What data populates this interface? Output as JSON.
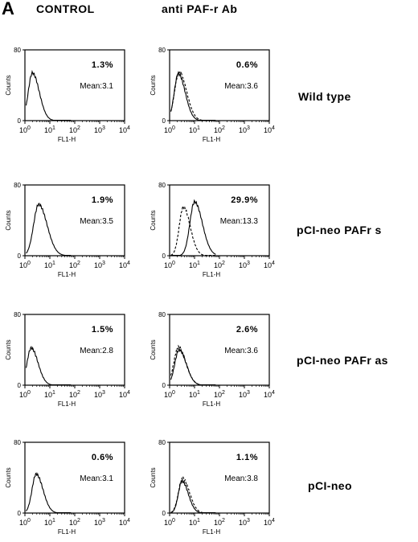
{
  "panel_label": "A",
  "columns": [
    "CONTROL",
    "anti  PAF-r  Ab"
  ],
  "rows": [
    "Wild  type",
    "pCI-neo  PAFr  s",
    "pCI-neo  PAFr  as",
    "pCI-neo"
  ],
  "chart_data": [
    {
      "type": "line",
      "position": "row1-control",
      "percent": "1.3%",
      "mean": "Mean:3.1",
      "ylabel": "Counts",
      "xlabel": "FL1-H",
      "ylim": [
        0,
        80
      ],
      "yticks": [
        "0",
        "80"
      ],
      "xticks": [
        "0",
        "1",
        "2",
        "3",
        "4"
      ],
      "xscale": "log",
      "series": [
        {
          "style": "solid",
          "peak_log": 0.3,
          "peak": 54,
          "width": 0.22
        }
      ]
    },
    {
      "type": "line",
      "position": "row1-anti",
      "percent": "0.6%",
      "mean": "Mean:3.6",
      "ylabel": "Counts",
      "xlabel": "FL1-H",
      "ylim": [
        0,
        80
      ],
      "yticks": [
        "0",
        "80"
      ],
      "xticks": [
        "0",
        "1",
        "2",
        "3",
        "4"
      ],
      "xscale": "log",
      "series": [
        {
          "style": "solid",
          "peak_log": 0.35,
          "peak": 53,
          "width": 0.22
        },
        {
          "style": "dashed",
          "peak_log": 0.38,
          "peak": 55,
          "width": 0.24
        }
      ]
    },
    {
      "type": "line",
      "position": "row2-control",
      "percent": "1.9%",
      "mean": "Mean:3.5",
      "ylabel": "Counts",
      "xlabel": "FL1-H",
      "ylim": [
        0,
        80
      ],
      "yticks": [
        "0",
        "80"
      ],
      "xticks": [
        "0",
        "1",
        "2",
        "3",
        "4"
      ],
      "xscale": "log",
      "series": [
        {
          "style": "solid",
          "peak_log": 0.55,
          "peak": 58,
          "width": 0.27
        }
      ]
    },
    {
      "type": "line",
      "position": "row2-anti",
      "percent": "29.9%",
      "mean": "Mean:13.3",
      "ylabel": "Counts",
      "xlabel": "FL1-H",
      "ylim": [
        0,
        80
      ],
      "yticks": [
        "0",
        "80"
      ],
      "xticks": [
        "0",
        "1",
        "2",
        "3",
        "4"
      ],
      "xscale": "log",
      "series": [
        {
          "style": "solid",
          "peak_log": 1.0,
          "peak": 61,
          "width": 0.25
        },
        {
          "style": "dashed",
          "peak_log": 0.55,
          "peak": 55,
          "width": 0.22
        }
      ]
    },
    {
      "type": "line",
      "position": "row3-control",
      "percent": "1.5%",
      "mean": "Mean:2.8",
      "ylabel": "Counts",
      "xlabel": "FL1-H",
      "ylim": [
        0,
        80
      ],
      "yticks": [
        "0",
        "80"
      ],
      "xticks": [
        "0",
        "1",
        "2",
        "3",
        "4"
      ],
      "xscale": "log",
      "series": [
        {
          "style": "solid",
          "peak_log": 0.25,
          "peak": 42,
          "width": 0.22
        }
      ]
    },
    {
      "type": "line",
      "position": "row3-anti",
      "percent": "2.6%",
      "mean": "Mean:3.6",
      "ylabel": "Counts",
      "xlabel": "FL1-H",
      "ylim": [
        0,
        80
      ],
      "yticks": [
        "0",
        "80"
      ],
      "xticks": [
        "0",
        "1",
        "2",
        "3",
        "4"
      ],
      "xscale": "log",
      "series": [
        {
          "style": "solid",
          "peak_log": 0.38,
          "peak": 40,
          "width": 0.23
        },
        {
          "style": "dashed",
          "peak_log": 0.35,
          "peak": 43,
          "width": 0.24
        }
      ]
    },
    {
      "type": "line",
      "position": "row4-control",
      "percent": "0.6%",
      "mean": "Mean:3.1",
      "ylabel": "Counts",
      "xlabel": "FL1-H",
      "ylim": [
        0,
        80
      ],
      "yticks": [
        "0",
        "80"
      ],
      "xticks": [
        "0",
        "1",
        "2",
        "3",
        "4"
      ],
      "xscale": "log",
      "series": [
        {
          "style": "solid",
          "peak_log": 0.45,
          "peak": 44,
          "width": 0.22
        }
      ]
    },
    {
      "type": "line",
      "position": "row4-anti",
      "percent": "1.1%",
      "mean": "Mean:3.8",
      "ylabel": "Counts",
      "xlabel": "FL1-H",
      "ylim": [
        0,
        80
      ],
      "yticks": [
        "0",
        "80"
      ],
      "xticks": [
        "0",
        "1",
        "2",
        "3",
        "4"
      ],
      "xscale": "log",
      "series": [
        {
          "style": "solid",
          "peak_log": 0.5,
          "peak": 36,
          "width": 0.2
        },
        {
          "style": "dashed",
          "peak_log": 0.52,
          "peak": 39,
          "width": 0.22
        }
      ]
    }
  ]
}
